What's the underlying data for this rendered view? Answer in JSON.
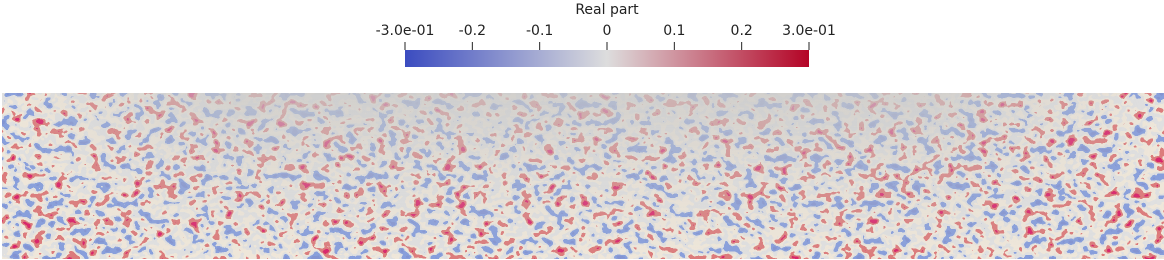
{
  "chart_data": {
    "type": "colorbar",
    "title": "Real part",
    "clim": [
      -0.3,
      0.3
    ],
    "ticks": [
      {
        "value": -0.3,
        "label": "-3.0e-01"
      },
      -0.2,
      -0.1,
      0,
      0.1,
      0.2,
      {
        "value": 0.3,
        "label": "3.0e-01"
      }
    ],
    "colormap": [
      "#3b4cc0",
      "#dddddd",
      "#b40426"
    ]
  }
}
